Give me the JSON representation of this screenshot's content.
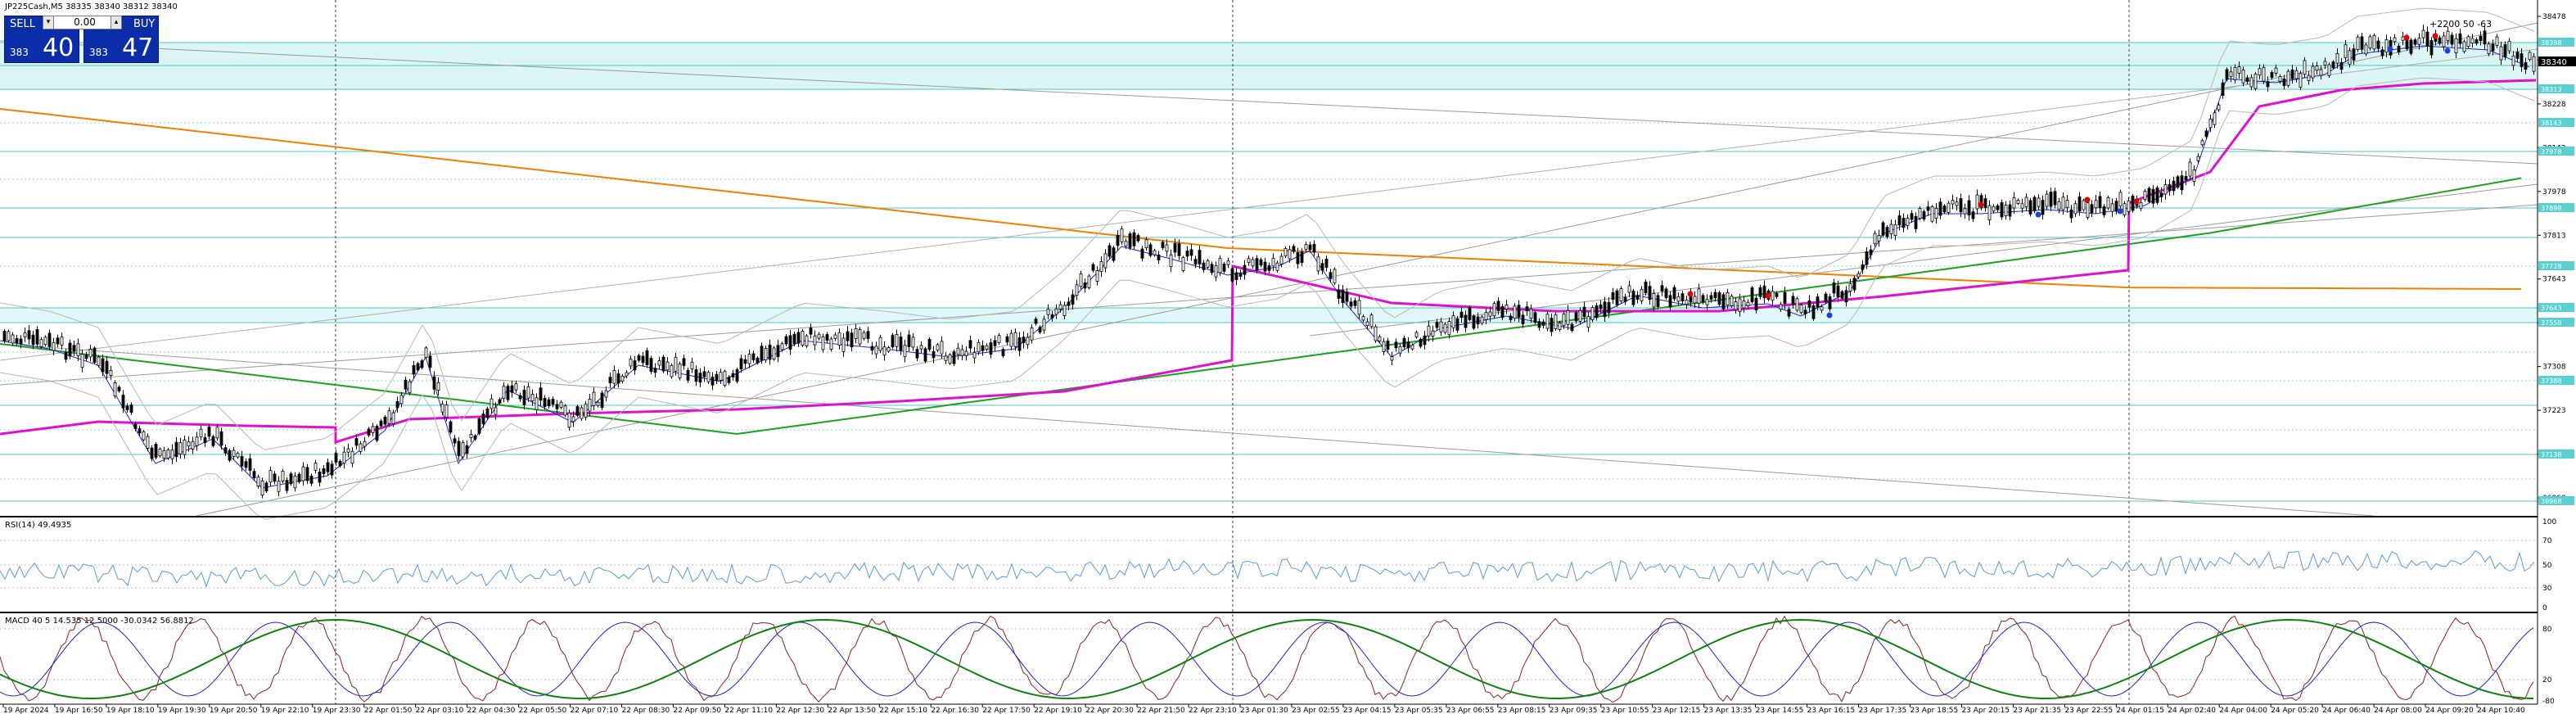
{
  "chart_header": "JP225Cash,M5  38335 38340 38312 38340",
  "trade_panel": {
    "sell_label": "SELL",
    "buy_label": "BUY",
    "lot": "0.00",
    "sell_prefix": "383",
    "sell_big": "40",
    "buy_prefix": "383",
    "buy_big": "47"
  },
  "price_axis": [
    "38478",
    "38313",
    "38228",
    "38143",
    "37978",
    "37813",
    "37643",
    "37473",
    "37308",
    "37223",
    "37053",
    "36968"
  ],
  "price_tag": "38340",
  "level_tags": [
    "38398",
    "38313",
    "38143",
    "37978",
    "37898",
    "37728",
    "37643",
    "37558",
    "37388",
    "37138",
    "36968"
  ],
  "top_right_note": "+2200 50 -63",
  "rsi": {
    "label": "RSI(14) 49.4935",
    "scale": [
      "100",
      "70",
      "50",
      "30",
      "0"
    ]
  },
  "stoch": {
    "label": "MACD 40 5 14.535 12.5000 -30.0342 56.8812",
    "scale": [
      "80",
      "20",
      "-80"
    ]
  },
  "time_axis": [
    "19 Apr 2024",
    "19 Apr 16:50",
    "19 Apr 18:10",
    "19 Apr 19:30",
    "19 Apr 20:50",
    "19 Apr 22:10",
    "19 Apr 23:30",
    "22 Apr 01:50",
    "22 Apr 03:10",
    "22 Apr 04:30",
    "22 Apr 05:50",
    "22 Apr 07:10",
    "22 Apr 08:30",
    "22 Apr 09:50",
    "22 Apr 11:10",
    "22 Apr 12:30",
    "22 Apr 13:50",
    "22 Apr 15:10",
    "22 Apr 16:30",
    "22 Apr 17:50",
    "22 Apr 19:10",
    "22 Apr 20:30",
    "22 Apr 21:50",
    "22 Apr 23:10",
    "23 Apr 01:30",
    "23 Apr 02:55",
    "23 Apr 04:15",
    "23 Apr 05:35",
    "23 Apr 06:55",
    "23 Apr 08:15",
    "23 Apr 09:35",
    "23 Apr 10:55",
    "23 Apr 12:15",
    "23 Apr 13:35",
    "23 Apr 14:55",
    "23 Apr 16:15",
    "23 Apr 17:35",
    "23 Apr 18:55",
    "23 Apr 20:15",
    "23 Apr 21:35",
    "23 Apr 22:55",
    "24 Apr 01:15",
    "24 Apr 02:40",
    "24 Apr 04:00",
    "24 Apr 05:20",
    "24 Apr 06:40",
    "24 Apr 08:00",
    "24 Apr 09:20",
    "24 Apr 10:40"
  ],
  "colors": {
    "zone_fill": "#d6f4f4",
    "zone_line": "#40c4c4",
    "ma_magenta": "#e010d0",
    "ma_green": "#20a020",
    "ma_orange": "#f08000",
    "ma_blue": "#2020e0",
    "candle": "#000000",
    "dot_red": "#e00000",
    "dot_blue": "#2040e0",
    "stoch_main": "#902020",
    "stoch_signal": "#2020d0",
    "stoch_slow": "#108010",
    "rsi_line": "#5a9ae0"
  }
}
